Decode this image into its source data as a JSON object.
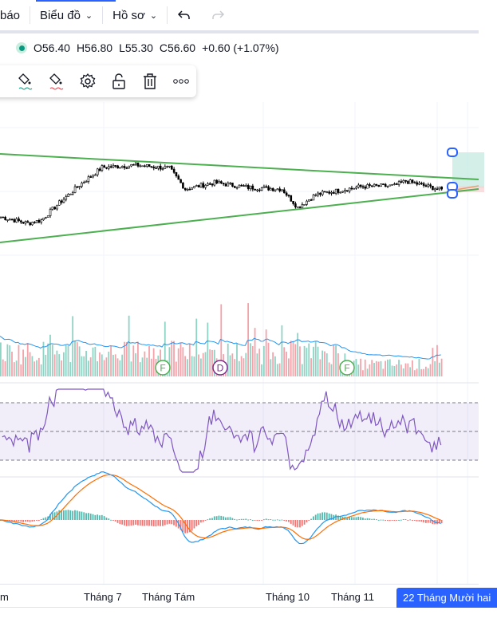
{
  "toolbar": {
    "alerts_partial": "báo",
    "chart_menu": "Biểu đồ",
    "profile_menu": "Hồ sơ",
    "undo": "undo-icon",
    "redo": "redo-icon"
  },
  "ohlc": {
    "open": "O56.40",
    "high": "H56.80",
    "low": "L55.30",
    "close": "C56.60",
    "change": "+0.60 (+1.07%)"
  },
  "floating_toolbar": [
    "fill-color-icon",
    "line-color-icon",
    "settings-icon",
    "unlock-icon",
    "trash-icon",
    "more-icon"
  ],
  "colors": {
    "up": "#089981",
    "down": "#f23645",
    "trendline": "#4caf50",
    "accent": "#2962ff",
    "rsi": "#7e57c2",
    "macd": "#2196f3",
    "signal": "#ff6d00"
  },
  "price_keypoints": [
    [
      0,
      53.0
    ],
    [
      12,
      52.2
    ],
    [
      18,
      52.6
    ],
    [
      25,
      54.5
    ],
    [
      35,
      57.0
    ],
    [
      45,
      59.2
    ],
    [
      60,
      59.5
    ],
    [
      75,
      59.1
    ],
    [
      82,
      56.5
    ],
    [
      95,
      57.3
    ],
    [
      110,
      56.7
    ],
    [
      125,
      56.5
    ],
    [
      132,
      54.2
    ],
    [
      140,
      55.8
    ],
    [
      160,
      56.8
    ],
    [
      175,
      56.9
    ],
    [
      180,
      57.5
    ],
    [
      190,
      56.8
    ],
    [
      196,
      56.4
    ]
  ],
  "volume_markers": [
    {
      "label": "F",
      "type": "earnings"
    },
    {
      "label": "D",
      "type": "dividend"
    },
    {
      "label": "F",
      "type": "earnings"
    }
  ],
  "xaxis": {
    "labels": [
      "m",
      "Tháng 7",
      "Tháng Tám",
      "Tháng 10",
      "Tháng 11"
    ],
    "current": "22 Tháng Mười hai"
  }
}
